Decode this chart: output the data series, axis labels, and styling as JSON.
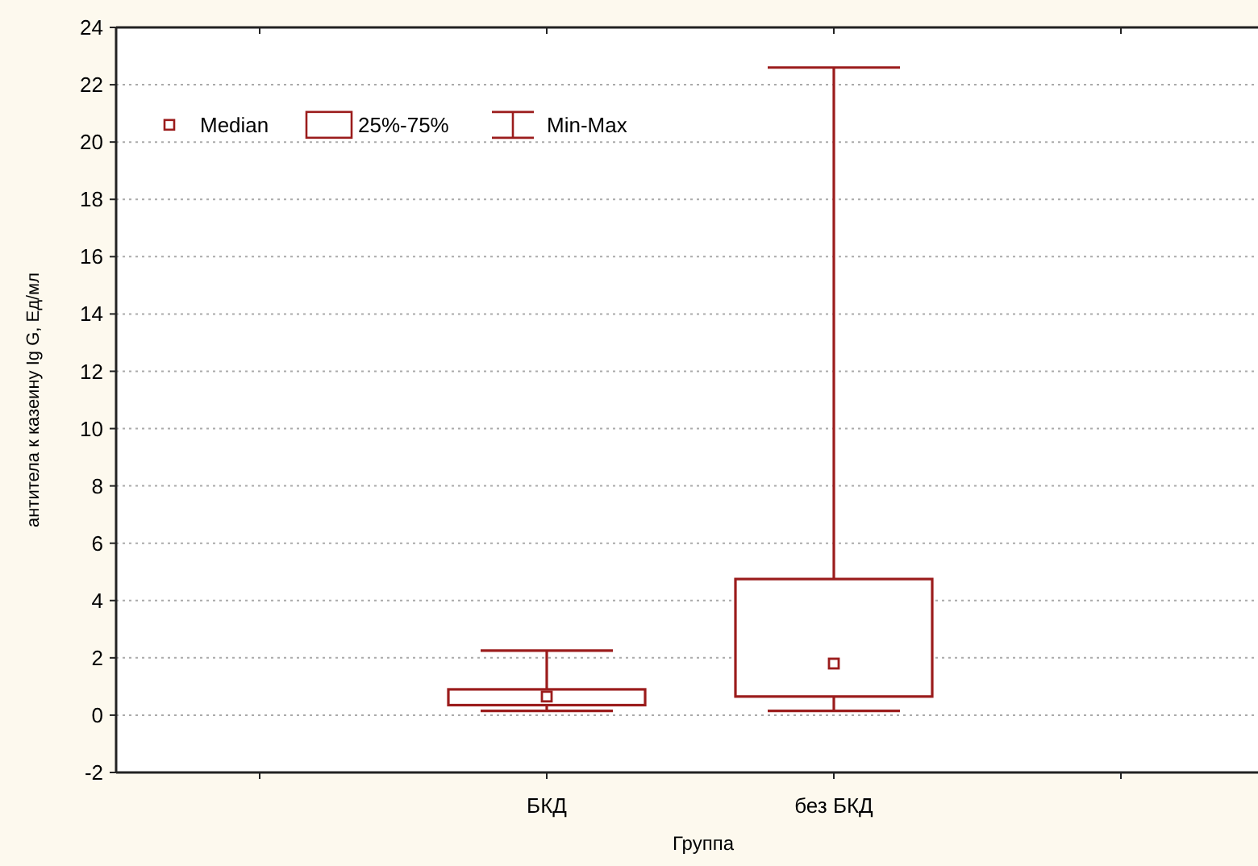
{
  "chart_data": {
    "type": "box",
    "xlabel": "Группа",
    "ylabel": "антитела к казеину  Ig G, Ед/мл",
    "categories": [
      "БКД",
      "без БКД"
    ],
    "boxes": [
      {
        "low": 0.15,
        "q1": 0.35,
        "median": 0.65,
        "q3": 0.9,
        "high": 2.25
      },
      {
        "low": 0.15,
        "q1": 0.65,
        "median": 1.8,
        "q3": 4.75,
        "high": 22.6
      }
    ],
    "color": "#9b1c1c",
    "ylim": [
      -2,
      24
    ],
    "yticks": [
      -2,
      0,
      2,
      4,
      6,
      8,
      10,
      12,
      14,
      16,
      18,
      20,
      22,
      24
    ],
    "grid": "y",
    "annotations": [
      "Median",
      "25%-75%",
      "Min-Max"
    ]
  }
}
